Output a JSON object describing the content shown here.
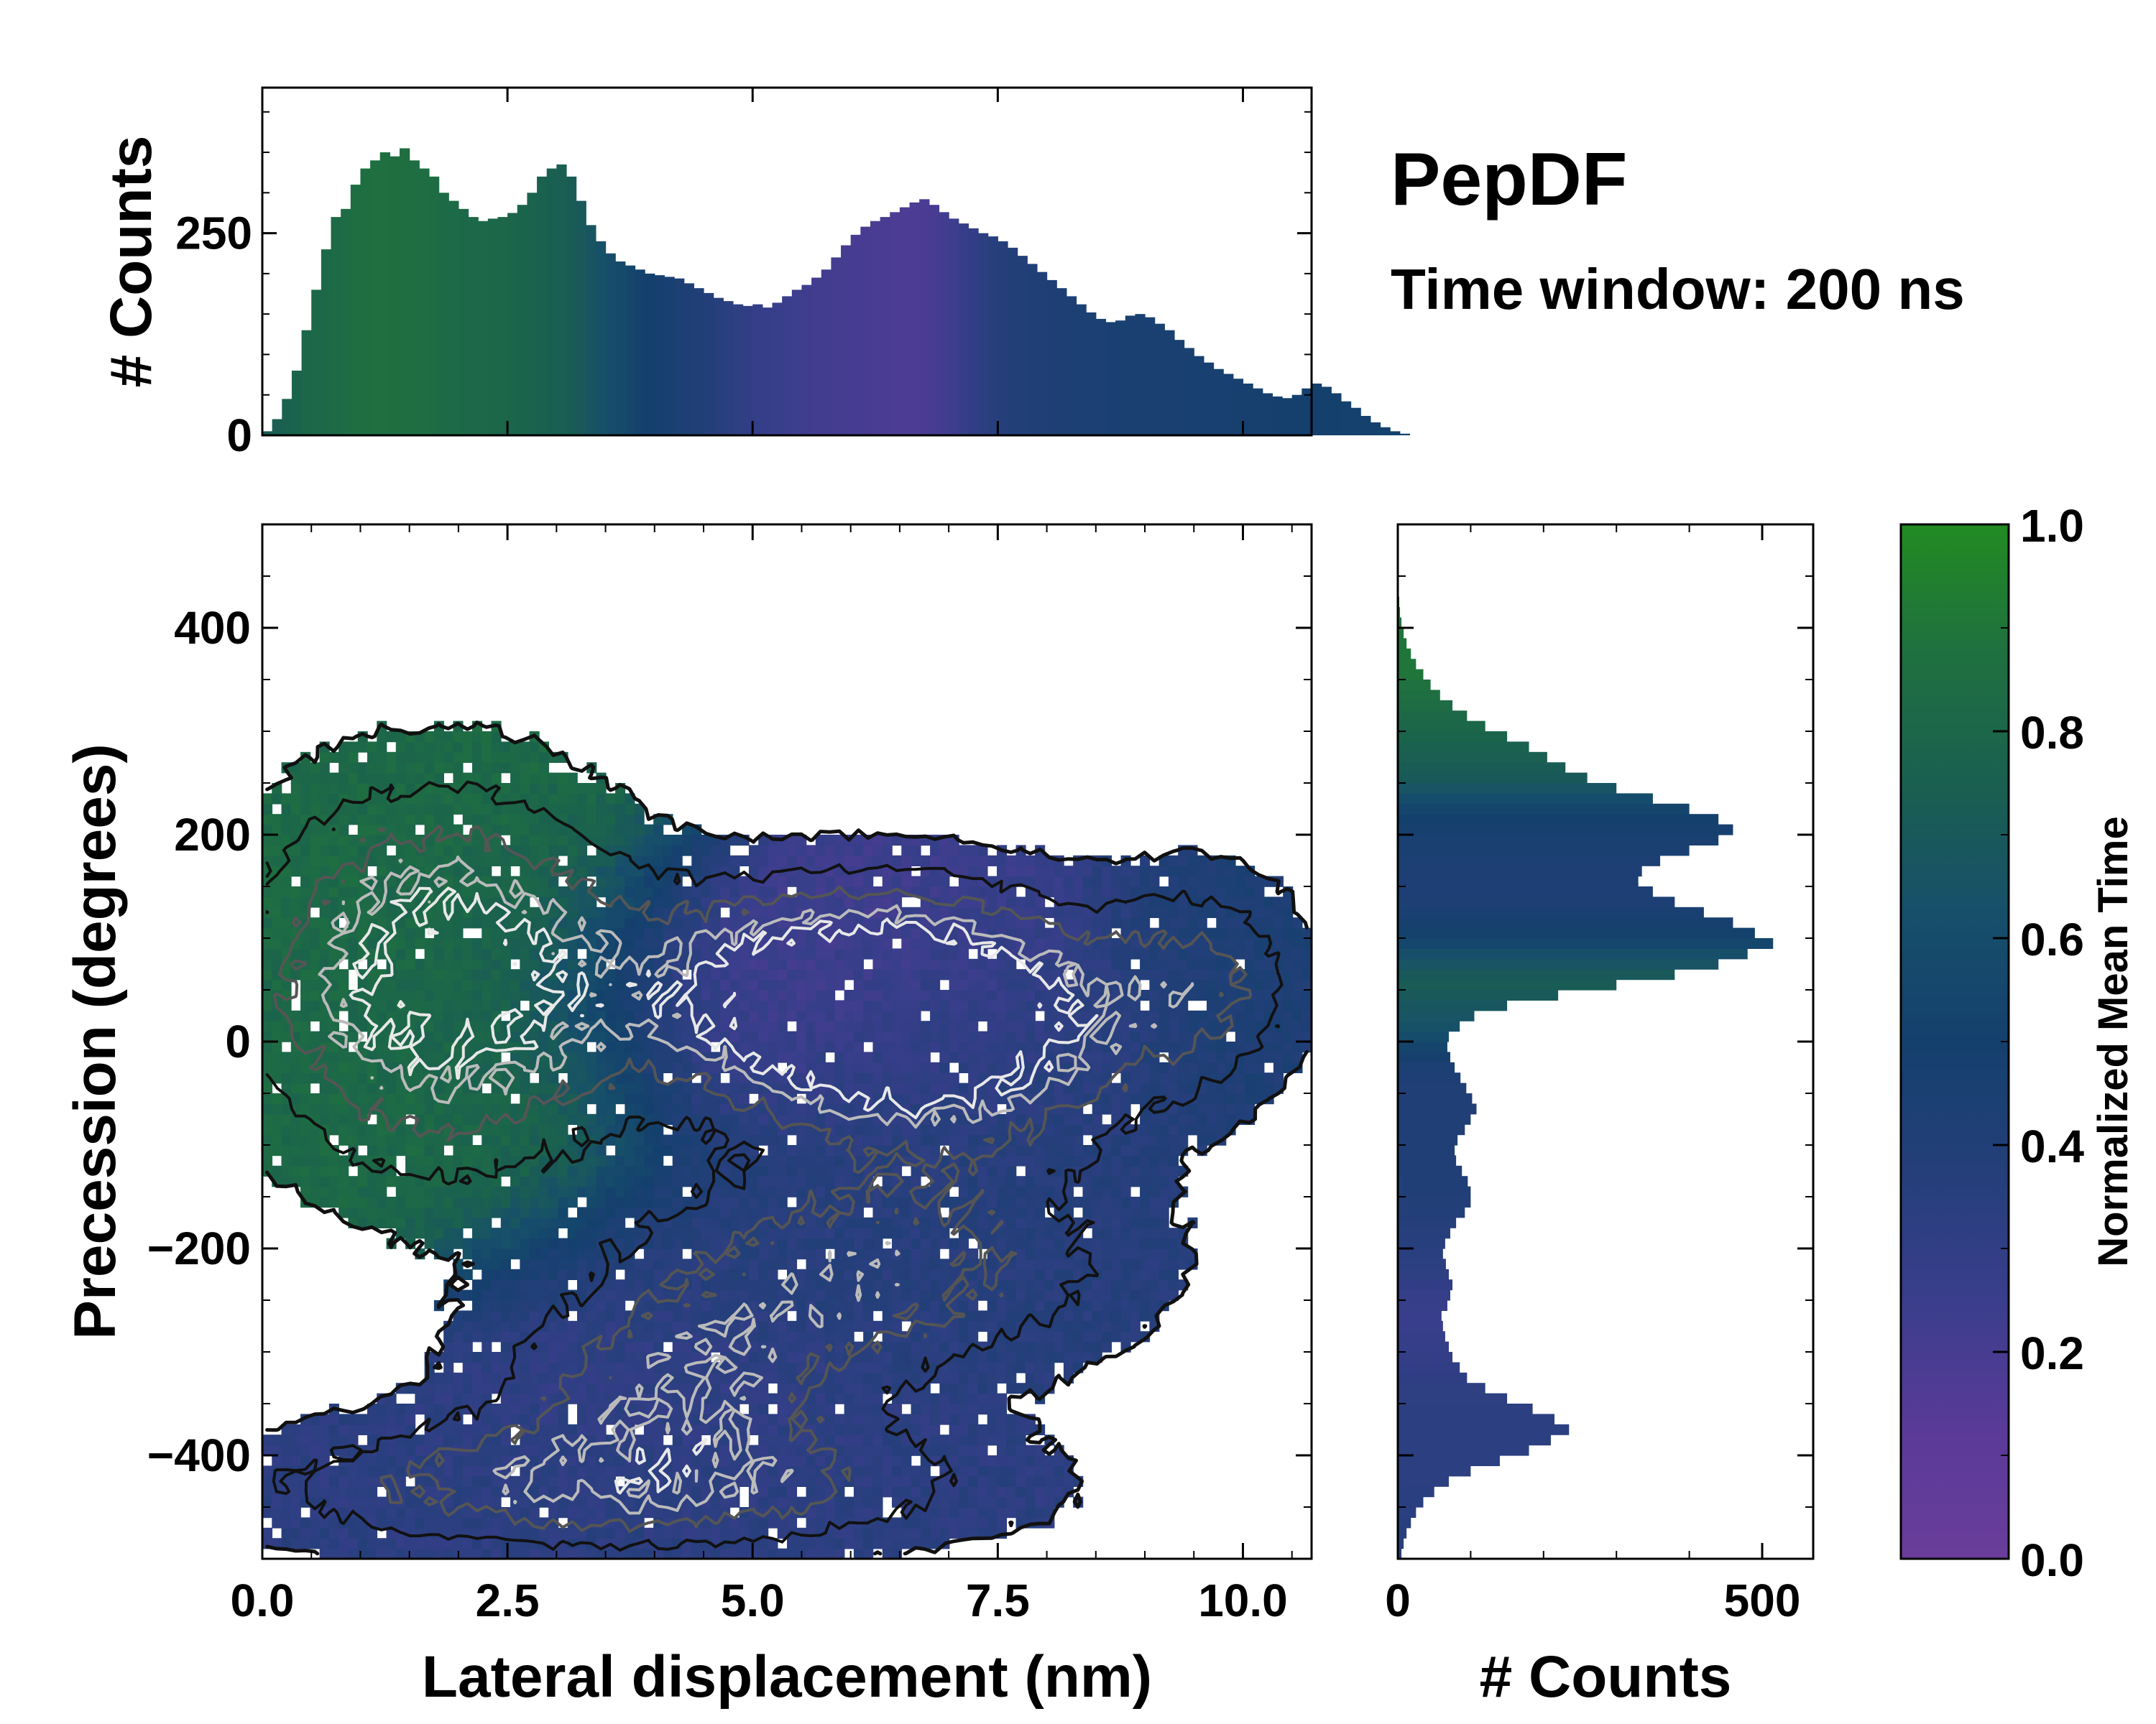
{
  "figure": {
    "title": "PepDF",
    "subtitle": "Time window: 200 ns"
  },
  "colors": {
    "colormap": [
      "#6a3d9a",
      "#5a3a98",
      "#3a3e8c",
      "#243f7a",
      "#14406d",
      "#174f6a",
      "#1a6050",
      "#1f7040",
      "#228b22"
    ],
    "contour_outer": "#111111",
    "contour_mid": "#555555",
    "contour_inner": "#bbbbbb"
  },
  "chart_data": [
    {
      "id": "top-histogram",
      "type": "bar",
      "ylabel": "# Counts",
      "xlim": [
        0.0,
        10.7
      ],
      "ylim": [
        0,
        430
      ],
      "yticks": [
        {
          "value": 0,
          "label": "0"
        },
        {
          "value": 250,
          "label": "250"
        }
      ],
      "x_start": 0.0,
      "bin_width": 0.1,
      "values": [
        5,
        20,
        45,
        80,
        130,
        180,
        230,
        270,
        280,
        310,
        330,
        340,
        350,
        345,
        355,
        340,
        330,
        320,
        300,
        290,
        280,
        270,
        265,
        268,
        270,
        275,
        285,
        300,
        320,
        330,
        335,
        320,
        290,
        260,
        240,
        225,
        215,
        210,
        205,
        200,
        198,
        196,
        194,
        188,
        182,
        176,
        170,
        166,
        162,
        160,
        162,
        158,
        164,
        172,
        180,
        186,
        195,
        205,
        220,
        235,
        248,
        258,
        265,
        270,
        276,
        282,
        288,
        292,
        285,
        276,
        268,
        262,
        256,
        250,
        246,
        240,
        232,
        222,
        212,
        202,
        192,
        182,
        172,
        162,
        152,
        144,
        140,
        142,
        148,
        150,
        146,
        138,
        130,
        118,
        108,
        98,
        90,
        82,
        76,
        70,
        64,
        58,
        52,
        48,
        46,
        50,
        58,
        64,
        60,
        52,
        42,
        34,
        24,
        16,
        10,
        5,
        2
      ],
      "color_values": [
        0.72,
        0.74,
        0.76,
        0.78,
        0.8,
        0.81,
        0.82,
        0.83,
        0.84,
        0.85,
        0.86,
        0.87,
        0.87,
        0.86,
        0.86,
        0.85,
        0.85,
        0.84,
        0.83,
        0.83,
        0.82,
        0.82,
        0.81,
        0.8,
        0.8,
        0.79,
        0.78,
        0.77,
        0.76,
        0.75,
        0.74,
        0.72,
        0.7,
        0.67,
        0.64,
        0.61,
        0.58,
        0.55,
        0.52,
        0.5,
        0.48,
        0.46,
        0.44,
        0.42,
        0.4,
        0.38,
        0.36,
        0.34,
        0.32,
        0.3,
        0.28,
        0.27,
        0.26,
        0.25,
        0.24,
        0.23,
        0.22,
        0.22,
        0.21,
        0.21,
        0.2,
        0.2,
        0.19,
        0.19,
        0.18,
        0.18,
        0.18,
        0.19,
        0.2,
        0.22,
        0.24,
        0.27,
        0.3,
        0.33,
        0.35,
        0.37,
        0.38,
        0.39,
        0.4,
        0.41,
        0.42,
        0.43,
        0.43,
        0.44,
        0.44,
        0.44,
        0.45,
        0.45,
        0.45,
        0.45,
        0.45,
        0.46,
        0.46,
        0.46,
        0.46,
        0.47,
        0.47,
        0.47,
        0.47,
        0.48,
        0.48,
        0.48,
        0.48,
        0.49,
        0.49,
        0.49,
        0.5,
        0.5,
        0.5,
        0.5,
        0.51,
        0.51,
        0.51,
        0.51,
        0.52,
        0.52,
        0.52
      ]
    },
    {
      "id": "joint-density",
      "type": "heatmap",
      "xlabel": "Lateral displacement (nm)",
      "ylabel": "Precession (degrees)",
      "xlim": [
        0.0,
        10.7
      ],
      "ylim": [
        -500,
        500
      ],
      "xticks": [
        {
          "value": 0.0,
          "label": "0.0"
        },
        {
          "value": 2.5,
          "label": "2.5"
        },
        {
          "value": 5.0,
          "label": "5.0"
        },
        {
          "value": 7.5,
          "label": "7.5"
        },
        {
          "value": 10.0,
          "label": "10.0"
        }
      ],
      "yticks": [
        {
          "value": 400,
          "label": "400"
        },
        {
          "value": 200,
          "label": "200"
        },
        {
          "value": 0,
          "label": "0"
        },
        {
          "value": -200,
          "label": "−200"
        },
        {
          "value": -400,
          "label": "−400"
        }
      ],
      "clusters": [
        {
          "name": "green-upper-left",
          "cx": 1.8,
          "cy": 60,
          "sx": 1.3,
          "sy": 120,
          "weight": 1.0,
          "color": 0.82
        },
        {
          "name": "purple-center",
          "cx": 5.8,
          "cy": 50,
          "sx": 1.6,
          "sy": 70,
          "weight": 0.9,
          "color": 0.18
        },
        {
          "name": "navy-center-right",
          "cx": 7.0,
          "cy": 0,
          "sx": 1.4,
          "sy": 80,
          "weight": 0.8,
          "color": 0.38
        },
        {
          "name": "navy-far-right",
          "cx": 9.6,
          "cy": 60,
          "sx": 0.7,
          "sy": 70,
          "weight": 0.45,
          "color": 0.45
        },
        {
          "name": "navy-middle-lower",
          "cx": 6.2,
          "cy": -220,
          "sx": 1.8,
          "sy": 70,
          "weight": 0.6,
          "color": 0.36
        },
        {
          "name": "blue-lower-center",
          "cx": 4.2,
          "cy": -330,
          "sx": 1.3,
          "sy": 60,
          "weight": 0.55,
          "color": 0.3
        },
        {
          "name": "blue-bottom",
          "cx": 3.5,
          "cy": -430,
          "sx": 2.6,
          "sy": 45,
          "weight": 0.65,
          "color": 0.33
        }
      ]
    },
    {
      "id": "side-histogram",
      "type": "bar",
      "orientation": "horizontal",
      "xlabel": "# Counts",
      "xlim": [
        0,
        570
      ],
      "ylim": [
        -500,
        500
      ],
      "xticks": [
        {
          "value": 0,
          "label": "0"
        },
        {
          "value": 500,
          "label": "500"
        }
      ],
      "y_start": -500,
      "bin_width": 10,
      "values": [
        5,
        8,
        12,
        18,
        25,
        35,
        50,
        70,
        100,
        140,
        180,
        210,
        235,
        215,
        185,
        150,
        120,
        95,
        85,
        75,
        70,
        65,
        62,
        60,
        68,
        72,
        75,
        70,
        66,
        62,
        65,
        72,
        80,
        92,
        100,
        100,
        96,
        88,
        80,
        78,
        82,
        92,
        100,
        108,
        102,
        94,
        86,
        78,
        72,
        68,
        70,
        85,
        105,
        150,
        220,
        300,
        380,
        440,
        480,
        515,
        490,
        460,
        420,
        380,
        350,
        330,
        335,
        360,
        400,
        440,
        460,
        440,
        400,
        350,
        300,
        260,
        230,
        205,
        180,
        150,
        120,
        95,
        75,
        58,
        45,
        35,
        25,
        18,
        12,
        8,
        5,
        3,
        2,
        1,
        1,
        0,
        0,
        0,
        0,
        0
      ],
      "color_values": [
        0.36,
        0.36,
        0.35,
        0.35,
        0.34,
        0.34,
        0.34,
        0.33,
        0.33,
        0.33,
        0.33,
        0.33,
        0.33,
        0.33,
        0.33,
        0.32,
        0.32,
        0.31,
        0.3,
        0.29,
        0.28,
        0.27,
        0.26,
        0.26,
        0.27,
        0.28,
        0.3,
        0.32,
        0.33,
        0.34,
        0.35,
        0.36,
        0.37,
        0.38,
        0.39,
        0.4,
        0.4,
        0.41,
        0.41,
        0.41,
        0.41,
        0.41,
        0.41,
        0.41,
        0.41,
        0.41,
        0.42,
        0.44,
        0.48,
        0.54,
        0.6,
        0.64,
        0.66,
        0.68,
        0.7,
        0.72,
        0.7,
        0.66,
        0.62,
        0.56,
        0.52,
        0.48,
        0.45,
        0.43,
        0.42,
        0.42,
        0.43,
        0.44,
        0.45,
        0.46,
        0.48,
        0.5,
        0.54,
        0.6,
        0.66,
        0.7,
        0.72,
        0.74,
        0.76,
        0.78,
        0.8,
        0.82,
        0.84,
        0.86,
        0.88,
        0.9,
        0.9,
        0.9,
        0.9,
        0.9,
        0.9,
        0.9,
        0.9,
        0.9,
        0.9,
        0.9,
        0.9,
        0.9,
        0.9,
        0.9
      ]
    },
    {
      "id": "colorbar",
      "type": "colorbar",
      "label": "Normalized Mean Time",
      "range": [
        0.0,
        1.0
      ],
      "ticks": [
        {
          "value": 0.0,
          "label": "0.0"
        },
        {
          "value": 0.2,
          "label": "0.2"
        },
        {
          "value": 0.4,
          "label": "0.4"
        },
        {
          "value": 0.6,
          "label": "0.6"
        },
        {
          "value": 0.8,
          "label": "0.8"
        },
        {
          "value": 1.0,
          "label": "1.0"
        }
      ]
    }
  ]
}
